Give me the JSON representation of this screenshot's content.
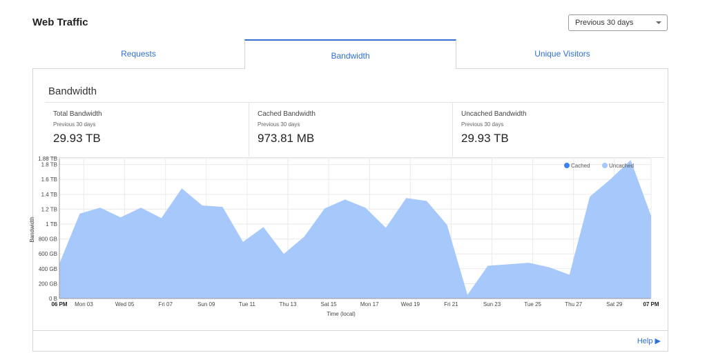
{
  "header": {
    "title": "Web Traffic",
    "range_select": "Previous 30 days"
  },
  "tabs": [
    "Requests",
    "Bandwidth",
    "Unique Visitors"
  ],
  "panel": {
    "title": "Bandwidth",
    "stats": [
      {
        "label": "Total Bandwidth",
        "period": "Previous 30 days",
        "value": "29.93 TB"
      },
      {
        "label": "Cached Bandwidth",
        "period": "Previous 30 days",
        "value": "973.81 MB"
      },
      {
        "label": "Uncached Bandwidth",
        "period": "Previous 30 days",
        "value": "29.93 TB"
      }
    ]
  },
  "chart_data": {
    "type": "area",
    "stacked": true,
    "x_label": "Time (local)",
    "y_label": "Bandwidth",
    "x": [
      0,
      1,
      2,
      3,
      4,
      5,
      6,
      7,
      8,
      9,
      10,
      11,
      12,
      13,
      14,
      15,
      16,
      17,
      18,
      19,
      20,
      21,
      22,
      23,
      24,
      25,
      26,
      27,
      28,
      29
    ],
    "series": [
      {
        "name": "Cached",
        "color": "#3b82f6",
        "values": [
          0,
          0,
          0,
          0,
          0,
          0,
          0,
          0,
          0,
          0,
          0,
          0,
          0,
          0,
          0,
          0,
          0,
          0,
          0,
          0,
          0,
          0,
          0,
          0,
          0,
          0,
          0,
          0,
          0,
          0
        ]
      },
      {
        "name": "Uncached",
        "color": "#a6c8fb",
        "values": [
          0.47,
          1.14,
          1.22,
          1.09,
          1.22,
          1.08,
          1.48,
          1.25,
          1.23,
          0.76,
          0.96,
          0.6,
          0.83,
          1.21,
          1.33,
          1.22,
          0.95,
          1.35,
          1.31,
          0.99,
          0.05,
          0.44,
          0.46,
          0.48,
          0.42,
          0.32,
          1.37,
          1.6,
          1.86,
          1.11
        ]
      }
    ],
    "xlim": [
      0,
      29
    ],
    "xticks": [
      {
        "value": 0,
        "label": "06 PM"
      },
      {
        "value": 1.2,
        "label": "Mon 03"
      },
      {
        "value": 3.2,
        "label": "Wed 05"
      },
      {
        "value": 5.2,
        "label": "Fri 07"
      },
      {
        "value": 7.2,
        "label": "Sun 09"
      },
      {
        "value": 9.2,
        "label": "Tue 11"
      },
      {
        "value": 11.2,
        "label": "Thu 13"
      },
      {
        "value": 13.2,
        "label": "Sat 15"
      },
      {
        "value": 15.2,
        "label": "Mon 17"
      },
      {
        "value": 17.2,
        "label": "Wed 19"
      },
      {
        "value": 19.2,
        "label": "Fri 21"
      },
      {
        "value": 21.2,
        "label": "Sun 23"
      },
      {
        "value": 23.2,
        "label": "Tue 25"
      },
      {
        "value": 25.2,
        "label": "Thu 27"
      },
      {
        "value": 27.2,
        "label": "Sat 29"
      },
      {
        "value": 29,
        "label": "07 PM"
      }
    ],
    "ylim": [
      0,
      1.88
    ],
    "yticks": [
      {
        "value": 0,
        "label": "0 B"
      },
      {
        "value": 0.2,
        "label": "200 GB"
      },
      {
        "value": 0.4,
        "label": "400 GB"
      },
      {
        "value": 0.6,
        "label": "600 GB"
      },
      {
        "value": 0.8,
        "label": "800 GB"
      },
      {
        "value": 1,
        "label": "1 TB"
      },
      {
        "value": 1.2,
        "label": "1.2 TB"
      },
      {
        "value": 1.4,
        "label": "1.4 TB"
      },
      {
        "value": 1.6,
        "label": "1.6 TB"
      },
      {
        "value": 1.8,
        "label": "1.8 TB"
      },
      {
        "value": 1.88,
        "label": "1.88 TB"
      }
    ],
    "grid": true,
    "legend": "top-right"
  },
  "footer": {
    "help": "Help"
  }
}
